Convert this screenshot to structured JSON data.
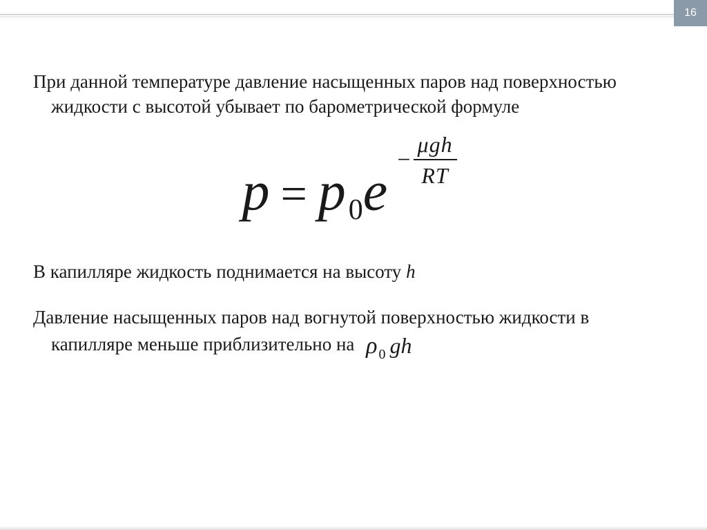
{
  "page": {
    "number": "16"
  },
  "colors": {
    "page_num_bg": "#8a9aa8",
    "page_num_fg": "#ffffff",
    "rule": "#d6d6d6",
    "text": "#1a1a1a",
    "background": "#ffffff"
  },
  "typography": {
    "body_family": "Georgia, 'Times New Roman', serif",
    "body_size_pt": 20,
    "formula_base_size_pt": 60,
    "formula_exp_size_pt": 24,
    "inline_formula_size_pt": 24
  },
  "text": {
    "para1": "При данной температуре давление насыщенных паров над поверхностью жидкости с высотой убывает по барометрической формуле",
    "para2_prefix": "В капилляре жидкость поднимается на высоту ",
    "para2_var": "h",
    "para3_prefix": "Давление насыщенных паров над вогнутой поверхностью жидкости в капилляре меньше приблизительно на"
  },
  "formula_main": {
    "lhs_var": "p",
    "eq": "=",
    "rhs_base_var": "p",
    "rhs_base_sub": "0",
    "rhs_e": "e",
    "exp_sign": "−",
    "exp_num": "μgh",
    "exp_den": "RT"
  },
  "formula_inline": {
    "rho": "ρ",
    "sub": "0",
    "rest": "gh"
  }
}
